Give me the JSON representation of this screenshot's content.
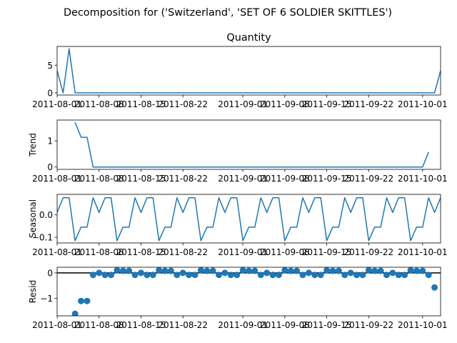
{
  "chart_data": {
    "suptitle": "Decomposition for ('Switzerland', 'SET OF 6 SOLDIER SKITTLES')",
    "x_start": "2011-08-01",
    "x_end": "2011-10-04",
    "xtick_labels": [
      "2011-08-01",
      "2011-08-08",
      "2011-08-15",
      "2011-08-22",
      "2011-09-01",
      "2011-09-08",
      "2011-09-15",
      "2011-09-22",
      "2011-10-01"
    ],
    "line_color": "#1f77b4",
    "panels": [
      {
        "type": "line",
        "title": "Quantity",
        "ylabel": "",
        "ylim": [
          -0.4,
          8.4
        ],
        "yticks": [
          0,
          5
        ],
        "x_start_offset": 0,
        "values": [
          4,
          0,
          8,
          0,
          0,
          0,
          0,
          0,
          0,
          0,
          0,
          0,
          0,
          0,
          0,
          0,
          0,
          0,
          0,
          0,
          0,
          0,
          0,
          0,
          0,
          0,
          0,
          0,
          0,
          0,
          0,
          0,
          0,
          0,
          0,
          0,
          0,
          0,
          0,
          0,
          0,
          0,
          0,
          0,
          0,
          0,
          0,
          0,
          0,
          0,
          0,
          0,
          0,
          0,
          0,
          0,
          0,
          0,
          0,
          0,
          0,
          0,
          0,
          0,
          4
        ]
      },
      {
        "type": "line",
        "title": "",
        "ylabel": "Trend",
        "ylim": [
          -0.09,
          1.8
        ],
        "yticks": [
          0,
          1
        ],
        "x_start_offset": 3,
        "values": [
          1.71,
          1.14,
          1.14,
          0,
          0,
          0,
          0,
          0,
          0,
          0,
          0,
          0,
          0,
          0,
          0,
          0,
          0,
          0,
          0,
          0,
          0,
          0,
          0,
          0,
          0,
          0,
          0,
          0,
          0,
          0,
          0,
          0,
          0,
          0,
          0,
          0,
          0,
          0,
          0,
          0,
          0,
          0,
          0,
          0,
          0,
          0,
          0,
          0,
          0,
          0,
          0,
          0,
          0,
          0,
          0,
          0,
          0,
          0,
          0,
          0.57
        ]
      },
      {
        "type": "line",
        "title": "",
        "ylabel": "Seasonal",
        "ylim": [
          -0.125,
          0.09
        ],
        "yticks": [
          0.0,
          -0.1
        ],
        "ytick_labels": [
          "0.0",
          "−0.1"
        ],
        "x_start_offset": 0,
        "values": [
          0.01,
          0.075,
          0.075,
          -0.115,
          -0.055,
          -0.055,
          0.075,
          0.01,
          0.075,
          0.075,
          -0.115,
          -0.055,
          -0.055,
          0.075,
          0.01,
          0.075,
          0.075,
          -0.115,
          -0.055,
          -0.055,
          0.075,
          0.01,
          0.075,
          0.075,
          -0.115,
          -0.055,
          -0.055,
          0.075,
          0.01,
          0.075,
          0.075,
          -0.115,
          -0.055,
          -0.055,
          0.075,
          0.01,
          0.075,
          0.075,
          -0.115,
          -0.055,
          -0.055,
          0.075,
          0.01,
          0.075,
          0.075,
          -0.115,
          -0.055,
          -0.055,
          0.075,
          0.01,
          0.075,
          0.075,
          -0.115,
          -0.055,
          -0.055,
          0.075,
          0.01,
          0.075,
          0.075,
          -0.115,
          -0.055,
          -0.055,
          0.075,
          0.01,
          0.075,
          0.075,
          -0.115
        ]
      },
      {
        "type": "scatter",
        "title": "",
        "ylabel": "Resid",
        "ylim": [
          -1.68,
          0.22
        ],
        "yticks": [
          0,
          -1
        ],
        "ytick_labels": [
          "0",
          "−1"
        ],
        "zero_line": true,
        "x_start_offset": 3,
        "values": [
          -1.6,
          -1.1,
          -1.1,
          -0.08,
          0,
          -0.08,
          -0.08,
          0.1,
          0.08,
          0.08,
          -0.08,
          0,
          -0.08,
          -0.08,
          0.1,
          0.08,
          0.08,
          -0.08,
          0,
          -0.08,
          -0.08,
          0.1,
          0.08,
          0.08,
          -0.08,
          0,
          -0.08,
          -0.08,
          0.1,
          0.08,
          0.08,
          -0.08,
          0,
          -0.08,
          -0.08,
          0.1,
          0.08,
          0.08,
          -0.08,
          0,
          -0.08,
          -0.08,
          0.1,
          0.08,
          0.08,
          -0.08,
          0,
          -0.08,
          -0.08,
          0.1,
          0.08,
          0.08,
          -0.08,
          0,
          -0.08,
          -0.08,
          0.1,
          0.08,
          0.08,
          -0.08,
          -0.57
        ]
      }
    ]
  }
}
